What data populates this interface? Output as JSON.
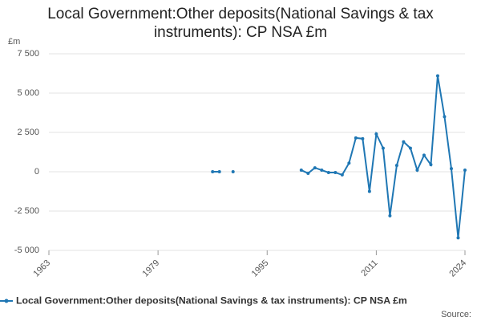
{
  "chart_data": {
    "type": "line",
    "title": "Local Government:Other deposits(National Savings & tax instruments): CP NSA £m",
    "y_unit": "£m",
    "source": "Source:",
    "x": [
      1987,
      1988,
      1989,
      1990,
      1991,
      2000,
      2001,
      2002,
      2003,
      2004,
      2005,
      2006,
      2007,
      2008,
      2009,
      2010,
      2011,
      2012,
      2013,
      2014,
      2015,
      2016,
      2017,
      2018,
      2019,
      2020,
      2021,
      2022,
      2023,
      2024
    ],
    "series": [
      {
        "name": "Local Government:Other deposits(National Savings & tax instruments): CP NSA £m",
        "color": "#1f77b4",
        "values": [
          0,
          0,
          null,
          0,
          null,
          100,
          -100,
          250,
          100,
          -50,
          -50,
          -200,
          550,
          2150,
          2100,
          -1250,
          2400,
          1500,
          -2800,
          400,
          1900,
          1500,
          100,
          1050,
          450,
          6100,
          3500,
          200,
          -4200,
          100
        ]
      }
    ],
    "xlim": [
      1963,
      2024
    ],
    "xticks": [
      1963,
      1979,
      1995,
      2011,
      2024
    ],
    "ylim": [
      -5000,
      7500
    ],
    "yticks": [
      {
        "value": -5000,
        "label": "-5 000"
      },
      {
        "value": -2500,
        "label": "-2 500"
      },
      0,
      {
        "value": 2500,
        "label": "2 500"
      },
      {
        "value": 5000,
        "label": "5 000"
      },
      {
        "value": 7500,
        "label": "7 500"
      }
    ],
    "grid": true
  }
}
